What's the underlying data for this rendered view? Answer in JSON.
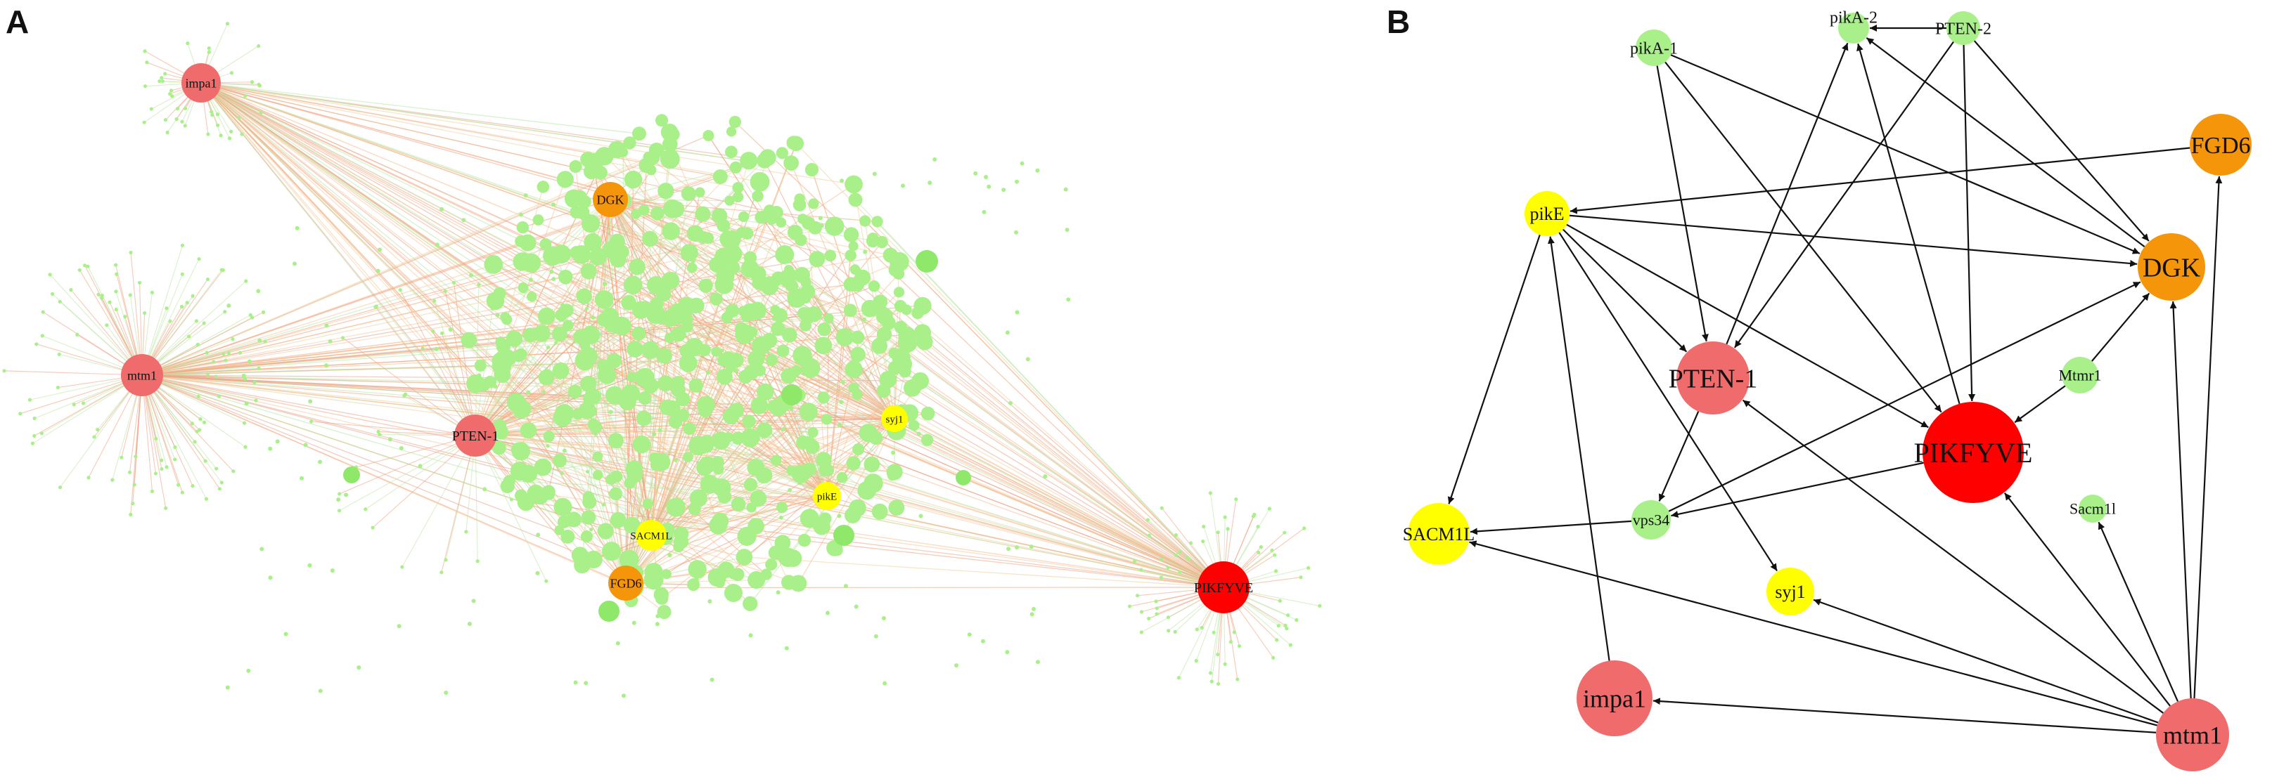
{
  "panels": {
    "a": {
      "letter": "A"
    },
    "b": {
      "letter": "B"
    }
  },
  "colors": {
    "pink": "#f06b6b",
    "red": "#ff0000",
    "orange": "#f5960a",
    "yellow": "#ffff00",
    "green": "#a9f08a",
    "edge": "#111111"
  },
  "panel_a_nodes": [
    {
      "id": "impa1",
      "label": "impa1",
      "color": "pink"
    },
    {
      "id": "mtm1",
      "label": "mtm1",
      "color": "pink"
    },
    {
      "id": "PTEN-1",
      "label": "PTEN-1",
      "color": "pink"
    },
    {
      "id": "DGK",
      "label": "DGK",
      "color": "orange"
    },
    {
      "id": "FGD6",
      "label": "FGD6",
      "color": "orange"
    },
    {
      "id": "SACM1L",
      "label": "SACM1L",
      "color": "yellow"
    },
    {
      "id": "pikE",
      "label": "pikE",
      "color": "yellow"
    },
    {
      "id": "syj1",
      "label": "syj1",
      "color": "yellow"
    },
    {
      "id": "PIKFYVE",
      "label": "PIKFYVE",
      "color": "red"
    }
  ],
  "panel_b_nodes": [
    {
      "id": "pikA-1",
      "label": "pikA-1",
      "color": "green"
    },
    {
      "id": "pikA-2",
      "label": "pikA-2",
      "color": "green"
    },
    {
      "id": "PTEN-2",
      "label": "PTEN-2",
      "color": "green"
    },
    {
      "id": "FGD6",
      "label": "FGD6",
      "color": "orange"
    },
    {
      "id": "pikE",
      "label": "pikE",
      "color": "yellow"
    },
    {
      "id": "DGK",
      "label": "DGK",
      "color": "orange"
    },
    {
      "id": "PTEN-1",
      "label": "PTEN-1",
      "color": "pink"
    },
    {
      "id": "Mtmr1",
      "label": "Mtmr1",
      "color": "green"
    },
    {
      "id": "PIKFYVE",
      "label": "PIKFYVE",
      "color": "red"
    },
    {
      "id": "SACM1L",
      "label": "SACM1L",
      "color": "yellow"
    },
    {
      "id": "vps34",
      "label": "vps34",
      "color": "green"
    },
    {
      "id": "Sacm1l",
      "label": "Sacm1l",
      "color": "green"
    },
    {
      "id": "syj1",
      "label": "syj1",
      "color": "yellow"
    },
    {
      "id": "impa1",
      "label": "impa1",
      "color": "pink"
    },
    {
      "id": "mtm1",
      "label": "mtm1",
      "color": "pink"
    }
  ],
  "panel_b_edges": [
    {
      "from": "pikA-1",
      "to": "PTEN-1"
    },
    {
      "from": "pikA-1",
      "to": "DGK"
    },
    {
      "from": "pikA-1",
      "to": "PIKFYVE"
    },
    {
      "from": "PTEN-2",
      "to": "PTEN-1"
    },
    {
      "from": "PTEN-2",
      "to": "PIKFYVE"
    },
    {
      "from": "PTEN-2",
      "to": "DGK"
    },
    {
      "from": "PTEN-2",
      "to": "pikA-2"
    },
    {
      "from": "PTEN-1",
      "to": "pikA-2"
    },
    {
      "from": "PIKFYVE",
      "to": "pikA-2"
    },
    {
      "from": "DGK",
      "to": "pikA-2"
    },
    {
      "from": "FGD6",
      "to": "pikE"
    },
    {
      "from": "pikE",
      "to": "DGK"
    },
    {
      "from": "pikE",
      "to": "PTEN-1"
    },
    {
      "from": "pikE",
      "to": "PIKFYVE"
    },
    {
      "from": "pikE",
      "to": "SACM1L"
    },
    {
      "from": "pikE",
      "to": "syj1"
    },
    {
      "from": "Mtmr1",
      "to": "DGK"
    },
    {
      "from": "Mtmr1",
      "to": "PIKFYVE"
    },
    {
      "from": "PTEN-1",
      "to": "vps34"
    },
    {
      "from": "vps34",
      "to": "SACM1L"
    },
    {
      "from": "vps34",
      "to": "DGK"
    },
    {
      "from": "PIKFYVE",
      "to": "vps34"
    },
    {
      "from": "impa1",
      "to": "pikE"
    },
    {
      "from": "mtm1",
      "to": "impa1"
    },
    {
      "from": "mtm1",
      "to": "syj1"
    },
    {
      "from": "mtm1",
      "to": "SACM1L"
    },
    {
      "from": "mtm1",
      "to": "PTEN-1"
    },
    {
      "from": "mtm1",
      "to": "PIKFYVE"
    },
    {
      "from": "mtm1",
      "to": "Sacm1l"
    },
    {
      "from": "mtm1",
      "to": "DGK"
    },
    {
      "from": "mtm1",
      "to": "FGD6"
    }
  ]
}
